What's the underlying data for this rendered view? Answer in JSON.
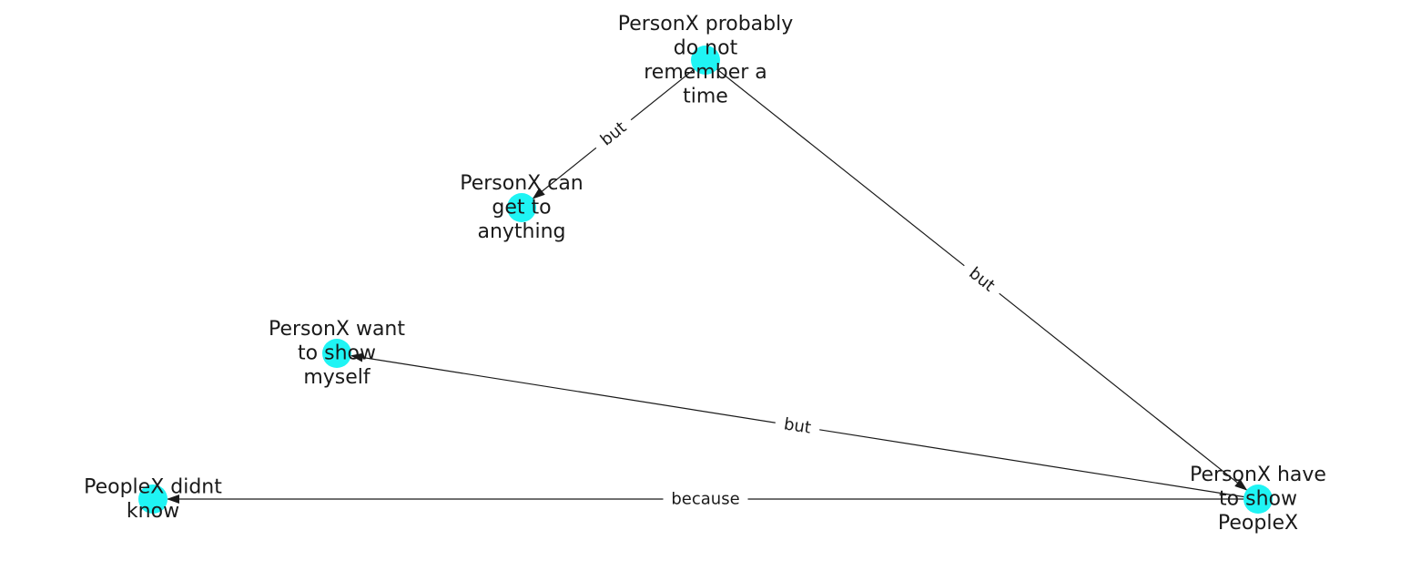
{
  "graph": {
    "node_color": "#1ff4f4",
    "edge_color": "#1a1a1a",
    "nodes": [
      {
        "id": "n1",
        "lines": [
          "PersonX probably",
          "do not",
          "remember a",
          "time"
        ]
      },
      {
        "id": "n2",
        "lines": [
          "PersonX can",
          "get to",
          "anything"
        ]
      },
      {
        "id": "n3",
        "lines": [
          "PersonX want",
          "to show",
          "myself"
        ]
      },
      {
        "id": "n4",
        "lines": [
          "PeopleX didnt",
          "know"
        ]
      },
      {
        "id": "n5",
        "lines": [
          "PersonX have",
          "to show",
          "PeopleX"
        ]
      }
    ],
    "edges": [
      {
        "source": "n1",
        "target": "n2",
        "label": "but"
      },
      {
        "source": "n1",
        "target": "n5",
        "label": "but"
      },
      {
        "source": "n5",
        "target": "n3",
        "label": "but"
      },
      {
        "source": "n5",
        "target": "n4",
        "label": "because"
      }
    ]
  }
}
